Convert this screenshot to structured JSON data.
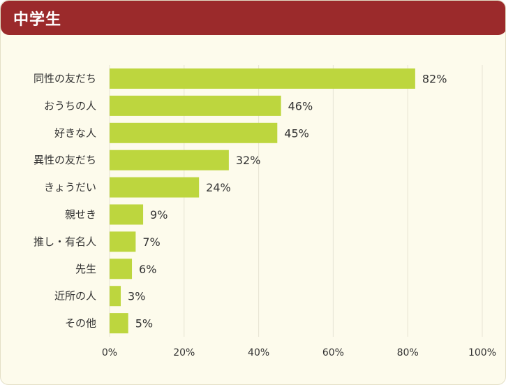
{
  "header": {
    "title": "中学生"
  },
  "colors": {
    "header_bg": "#9b2a2b",
    "bar": "#bdd63e",
    "background": "#fdfbec",
    "grid": "#e6e3d3"
  },
  "chart_data": {
    "type": "bar",
    "orientation": "horizontal",
    "categories": [
      "同性の友だち",
      "おうちの人",
      "好きな人",
      "異性の友だち",
      "きょうだい",
      "親せき",
      "推し・有名人",
      "先生",
      "近所の人",
      "その他"
    ],
    "values": [
      82,
      46,
      45,
      32,
      24,
      9,
      7,
      6,
      3,
      5
    ],
    "value_labels": [
      "82%",
      "46%",
      "45%",
      "32%",
      "24%",
      "9%",
      "7%",
      "6%",
      "3%",
      "5%"
    ],
    "x_ticks": [
      "0%",
      "20%",
      "40%",
      "60%",
      "80%",
      "100%"
    ],
    "xlim": [
      0,
      100
    ],
    "grid": true
  }
}
